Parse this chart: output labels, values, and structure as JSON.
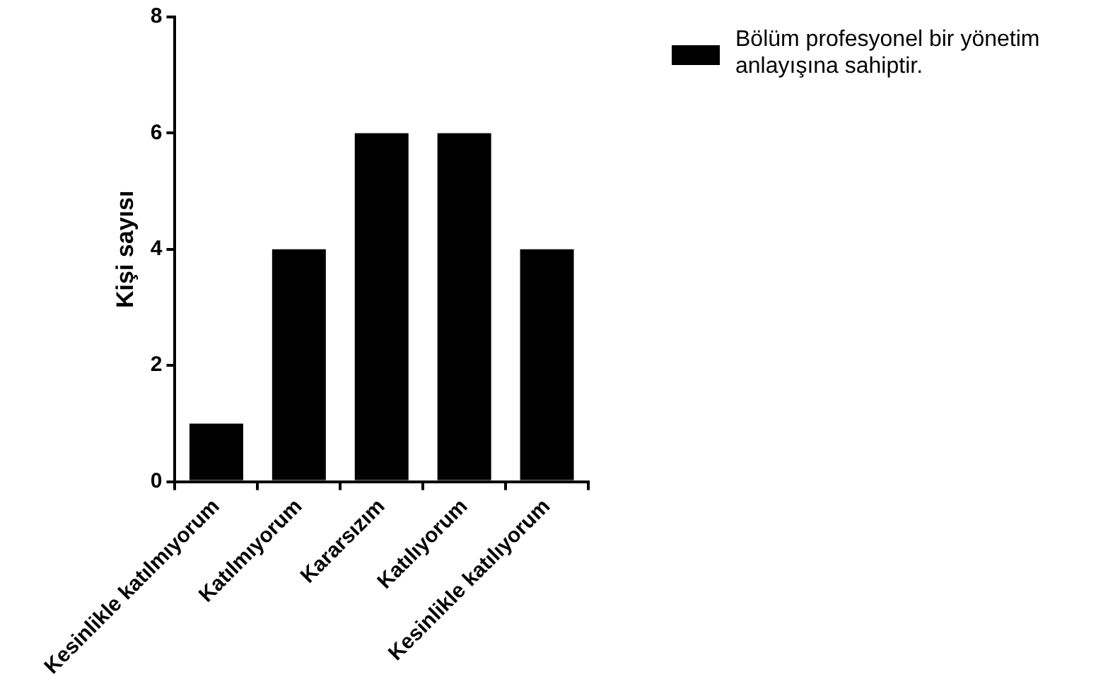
{
  "chart_data": {
    "type": "bar",
    "ylabel": "Kişi sayısı",
    "categories": [
      "Kesinlikle katılmıyorum",
      "Katılmıyorum",
      "Kararsızım",
      "Katılıyorum",
      "Kesinlikle katılıyorum"
    ],
    "series": [
      {
        "name": "Bölüm profesyonel bir yönetim anlayışına sahiptir.",
        "color": "#000000",
        "values": [
          1,
          4,
          6,
          6,
          4
        ]
      }
    ],
    "ylim": [
      0,
      8
    ],
    "yticks": [
      0,
      2,
      4,
      6,
      8
    ],
    "grid": false,
    "legend": "top right"
  }
}
